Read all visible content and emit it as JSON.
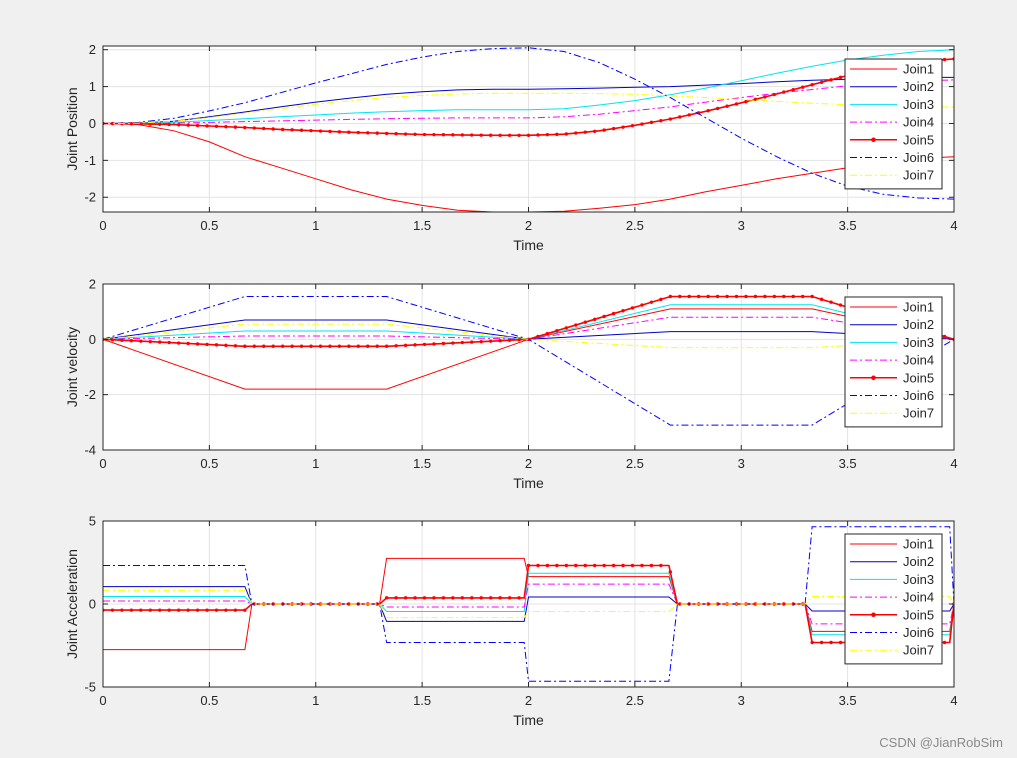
{
  "watermark": "CSDN @JianRobSim",
  "chart_data": [
    {
      "type": "line",
      "xlabel": "Time",
      "ylabel": "Joint Position",
      "xlim": [
        0,
        4
      ],
      "ylim": [
        -2.4,
        2.1
      ],
      "xticks": [
        0,
        0.5,
        1,
        1.5,
        2,
        2.5,
        3,
        3.5,
        4
      ],
      "xtick_labels": [
        "0",
        "0.5",
        "1",
        "1.5",
        "2",
        "2.5",
        "3",
        "3.5",
        "4"
      ],
      "yticks": [
        -2,
        -1,
        0,
        1,
        2
      ],
      "ytick_labels": [
        "-2",
        "-1",
        "0",
        "1",
        "2"
      ],
      "grid": true,
      "legend_position": "top-right",
      "x": [
        0,
        0.1667,
        0.3333,
        0.5,
        0.6667,
        0.8333,
        1.0,
        1.1667,
        1.3333,
        1.5,
        1.6667,
        1.8333,
        2.0,
        2.1667,
        2.3333,
        2.5,
        2.6667,
        2.8333,
        3.0,
        3.1667,
        3.3333,
        3.5,
        3.6667,
        3.8333,
        4.0
      ],
      "series": [
        {
          "name": "Join1",
          "color": "#ff0000",
          "style": "solid",
          "marker": "",
          "values": [
            0,
            -0.03,
            -0.2,
            -0.5,
            -0.9,
            -1.2,
            -1.5,
            -1.8,
            -2.05,
            -2.22,
            -2.35,
            -2.4,
            -2.4,
            -2.38,
            -2.3,
            -2.2,
            -2.05,
            -1.85,
            -1.68,
            -1.5,
            -1.35,
            -1.2,
            -1.05,
            -0.95,
            -0.9
          ]
        },
        {
          "name": "Join2",
          "color": "#0000cc",
          "style": "solid",
          "marker": "",
          "values": [
            0,
            0.01,
            0.06,
            0.18,
            0.31,
            0.45,
            0.58,
            0.69,
            0.79,
            0.86,
            0.91,
            0.93,
            0.93,
            0.94,
            0.96,
            0.98,
            1.0,
            1.04,
            1.08,
            1.13,
            1.17,
            1.2,
            1.23,
            1.25,
            1.25
          ]
        },
        {
          "name": "Join3",
          "color": "#00e5ee",
          "style": "solid",
          "marker": "",
          "values": [
            0,
            0.005,
            0.03,
            0.08,
            0.13,
            0.18,
            0.23,
            0.28,
            0.32,
            0.35,
            0.37,
            0.37,
            0.37,
            0.4,
            0.5,
            0.62,
            0.78,
            0.96,
            1.16,
            1.36,
            1.55,
            1.72,
            1.85,
            1.95,
            2.0
          ]
        },
        {
          "name": "Join4",
          "color": "#ff00ff",
          "style": "dashdot",
          "marker": "",
          "values": [
            0,
            0.002,
            0.01,
            0.03,
            0.05,
            0.07,
            0.09,
            0.11,
            0.13,
            0.14,
            0.15,
            0.15,
            0.15,
            0.18,
            0.25,
            0.35,
            0.45,
            0.58,
            0.7,
            0.82,
            0.92,
            1.02,
            1.1,
            1.15,
            1.18
          ]
        },
        {
          "name": "Join5",
          "color": "#ff0000",
          "style": "solid",
          "marker": "dot",
          "values": [
            0,
            -0.01,
            -0.03,
            -0.07,
            -0.11,
            -0.16,
            -0.2,
            -0.24,
            -0.27,
            -0.3,
            -0.31,
            -0.32,
            -0.32,
            -0.29,
            -0.2,
            -0.05,
            0.12,
            0.33,
            0.56,
            0.8,
            1.05,
            1.3,
            1.52,
            1.68,
            1.75
          ]
        },
        {
          "name": "Join6",
          "color": "#0000ff",
          "style": "dashdot",
          "marker": "",
          "values": [
            0,
            0.03,
            0.14,
            0.34,
            0.56,
            0.83,
            1.1,
            1.35,
            1.6,
            1.8,
            1.95,
            2.03,
            2.05,
            1.95,
            1.65,
            1.2,
            0.7,
            0.15,
            -0.4,
            -0.9,
            -1.35,
            -1.7,
            -1.92,
            -2.02,
            -2.05
          ]
        },
        {
          "name": "Join7",
          "color": "#ffff00",
          "style": "dashdot",
          "marker": "",
          "values": [
            0,
            0.01,
            0.06,
            0.16,
            0.28,
            0.4,
            0.52,
            0.62,
            0.7,
            0.76,
            0.8,
            0.82,
            0.82,
            0.82,
            0.81,
            0.79,
            0.75,
            0.7,
            0.65,
            0.6,
            0.55,
            0.51,
            0.47,
            0.45,
            0.45
          ]
        }
      ]
    },
    {
      "type": "line",
      "xlabel": "Time",
      "ylabel": "Joint velocity",
      "xlim": [
        0,
        4
      ],
      "ylim": [
        -4,
        2
      ],
      "xticks": [
        0,
        0.5,
        1,
        1.5,
        2,
        2.5,
        3,
        3.5,
        4
      ],
      "xtick_labels": [
        "0",
        "0.5",
        "1",
        "1.5",
        "2",
        "2.5",
        "3",
        "3.5",
        "4"
      ],
      "yticks": [
        -4,
        -2,
        0,
        2
      ],
      "ytick_labels": [
        "-4",
        "-2",
        "0",
        "2"
      ],
      "grid": true,
      "legend_position": "top-right",
      "x": [
        0,
        0.667,
        1.333,
        2.0,
        2.667,
        3.333,
        4.0
      ],
      "series": [
        {
          "name": "Join1",
          "color": "#ff0000",
          "style": "solid",
          "marker": "",
          "values": [
            0,
            -1.8,
            -1.8,
            0,
            1.1,
            1.1,
            0
          ]
        },
        {
          "name": "Join2",
          "color": "#0000cc",
          "style": "solid",
          "marker": "",
          "values": [
            0,
            0.7,
            0.7,
            0,
            0.28,
            0.28,
            0
          ]
        },
        {
          "name": "Join3",
          "color": "#00e5ee",
          "style": "solid",
          "marker": "",
          "values": [
            0,
            0.3,
            0.3,
            0,
            1.25,
            1.25,
            0
          ]
        },
        {
          "name": "Join4",
          "color": "#ff00ff",
          "style": "dashdot",
          "marker": "",
          "values": [
            0,
            0.12,
            0.12,
            0,
            0.8,
            0.8,
            0
          ]
        },
        {
          "name": "Join5",
          "color": "#ff0000",
          "style": "solid",
          "marker": "dot",
          "values": [
            0,
            -0.25,
            -0.25,
            0,
            1.55,
            1.55,
            0
          ]
        },
        {
          "name": "Join6",
          "color": "#0000ff",
          "style": "dashdot",
          "marker": "",
          "values": [
            0,
            1.55,
            1.55,
            0,
            -3.1,
            -3.1,
            0
          ]
        },
        {
          "name": "Join7",
          "color": "#ffff00",
          "style": "dashdot",
          "marker": "",
          "values": [
            0,
            0.55,
            0.55,
            0,
            -0.3,
            -0.3,
            0
          ]
        }
      ]
    },
    {
      "type": "line",
      "xlabel": "Time",
      "ylabel": "Joint Acceleration",
      "xlim": [
        0,
        4
      ],
      "ylim": [
        -5,
        5
      ],
      "xticks": [
        0,
        0.5,
        1,
        1.5,
        2,
        2.5,
        3,
        3.5,
        4
      ],
      "xtick_labels": [
        "0",
        "0.5",
        "1",
        "1.5",
        "2",
        "2.5",
        "3",
        "3.5",
        "4"
      ],
      "yticks": [
        -5,
        0,
        5
      ],
      "ytick_labels": [
        "-5",
        "0",
        "5"
      ],
      "grid": true,
      "legend_position": "top-right",
      "x": [
        0,
        0.667,
        0.7,
        1.3,
        1.333,
        1.98,
        2.0,
        2.66,
        2.7,
        3.3,
        3.333,
        3.98,
        4.0
      ],
      "series": [
        {
          "name": "Join1",
          "color": "#ff0000",
          "style": "solid",
          "marker": "",
          "values": [
            -2.75,
            -2.75,
            0,
            0,
            2.75,
            2.75,
            1.65,
            1.65,
            0,
            0,
            -1.65,
            -1.65,
            0
          ]
        },
        {
          "name": "Join2",
          "color": "#0000cc",
          "style": "solid",
          "marker": "",
          "values": [
            1.05,
            1.05,
            0,
            0,
            -1.05,
            -1.05,
            0.42,
            0.42,
            0,
            0,
            -0.42,
            -0.42,
            0
          ]
        },
        {
          "name": "Join3",
          "color": "#00e5ee",
          "style": "solid",
          "marker": "",
          "values": [
            0.45,
            0.45,
            0,
            0,
            -0.45,
            -0.45,
            1.85,
            1.85,
            0,
            0,
            -1.85,
            -1.85,
            0
          ]
        },
        {
          "name": "Join4",
          "color": "#ff00ff",
          "style": "dashdot",
          "marker": "",
          "values": [
            0.18,
            0.18,
            0,
            0,
            -0.18,
            -0.18,
            1.2,
            1.2,
            0,
            0,
            -1.2,
            -1.2,
            0
          ]
        },
        {
          "name": "Join5",
          "color": "#ff0000",
          "style": "solid",
          "marker": "dot",
          "values": [
            -0.37,
            -0.37,
            0,
            0,
            0.37,
            0.37,
            2.32,
            2.32,
            0,
            0,
            -2.32,
            -2.32,
            0
          ]
        },
        {
          "name": "Join6",
          "color": "#0000ff",
          "style": "dashdot",
          "marker": "",
          "values": [
            2.32,
            2.32,
            0,
            0,
            -2.32,
            -2.32,
            -4.65,
            -4.65,
            0,
            0,
            4.65,
            4.65,
            0
          ]
        },
        {
          "name": "Join7",
          "color": "#ffff00",
          "style": "dashdot",
          "marker": "",
          "values": [
            0.82,
            0.82,
            0,
            0,
            -0.82,
            -0.82,
            -0.45,
            -0.45,
            0,
            0,
            0.45,
            0.45,
            0
          ]
        }
      ]
    }
  ]
}
